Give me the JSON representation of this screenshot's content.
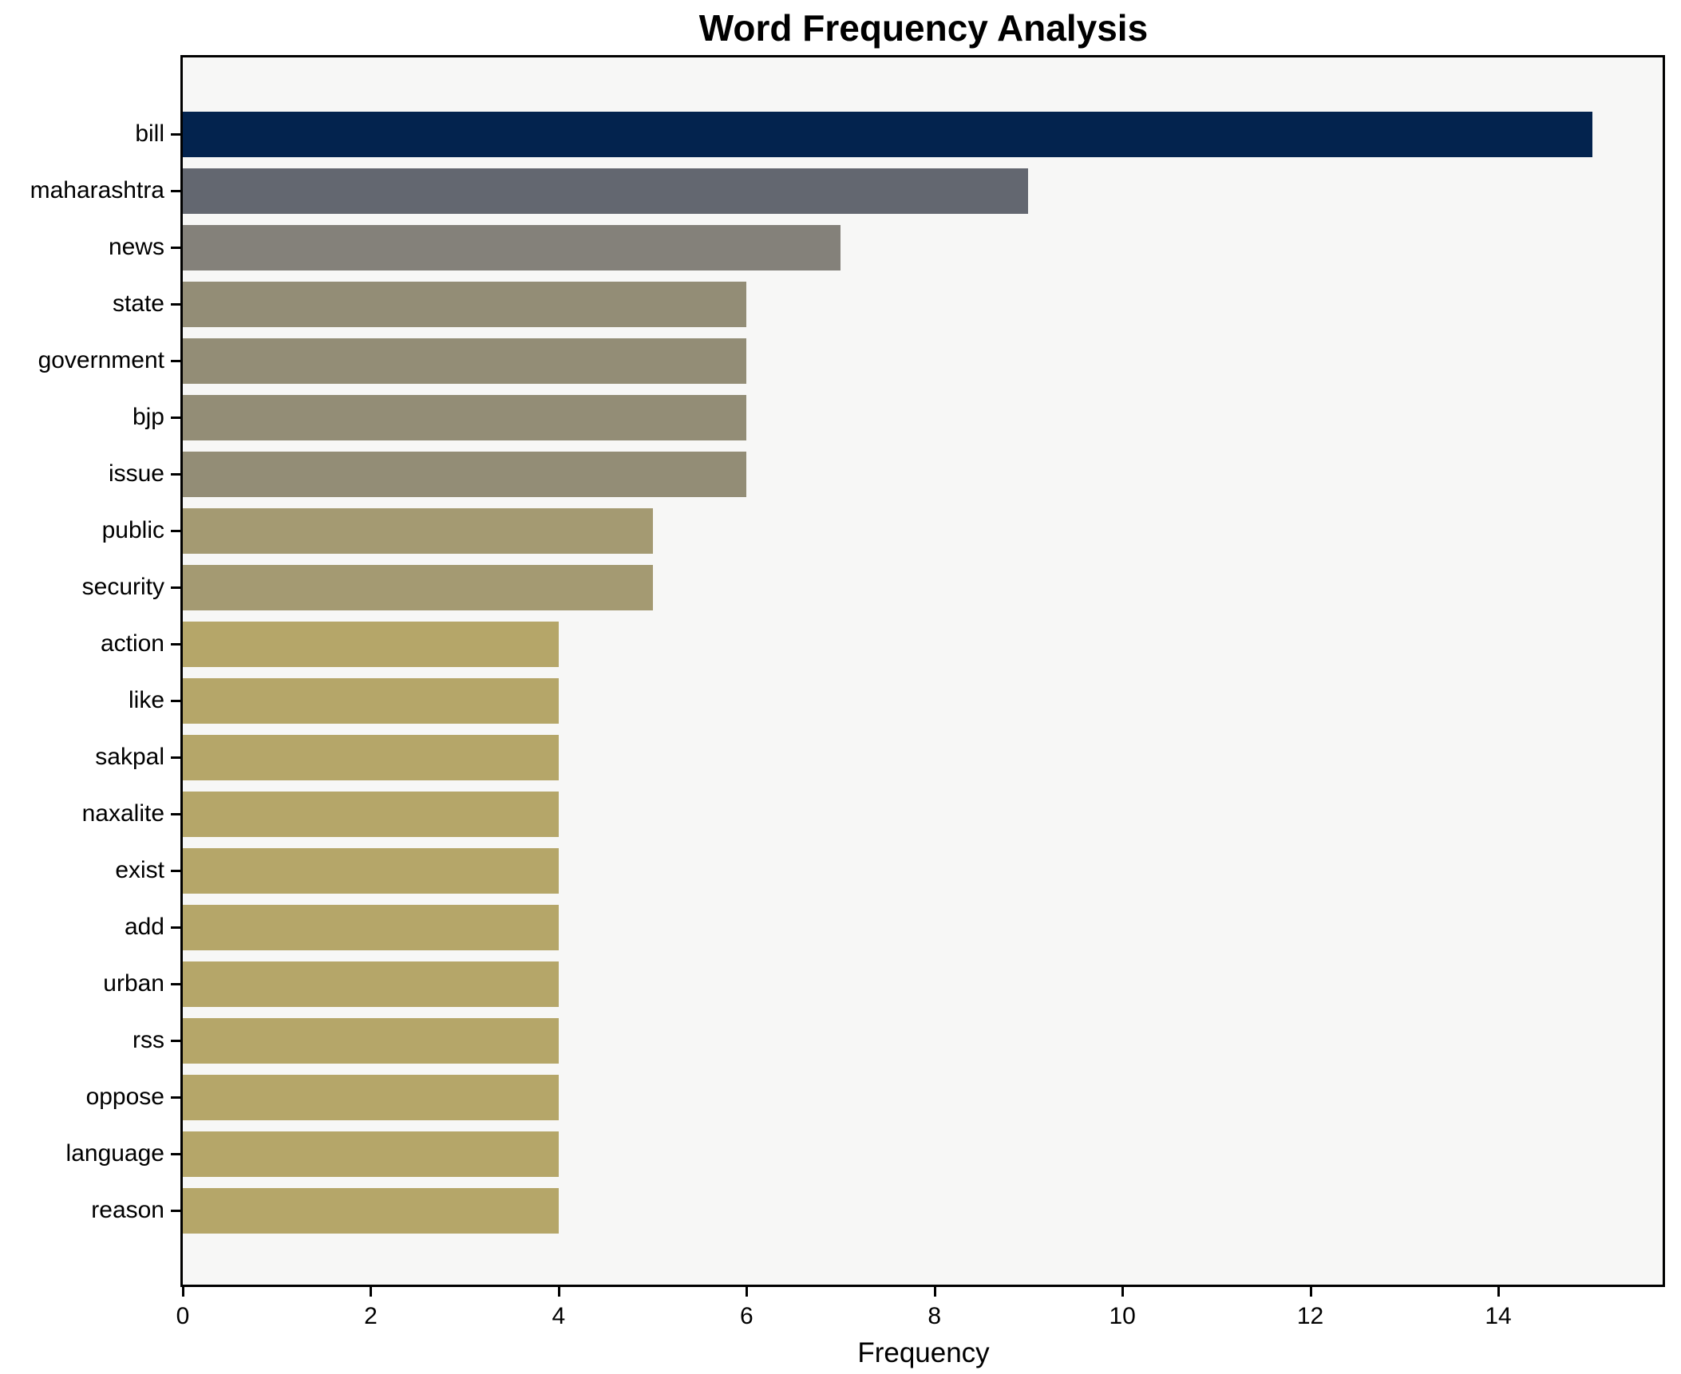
{
  "chart_data": {
    "type": "bar",
    "orientation": "horizontal",
    "title": "Word Frequency Analysis",
    "xlabel": "Frequency",
    "ylabel": "",
    "categories": [
      "bill",
      "maharashtra",
      "news",
      "state",
      "government",
      "bjp",
      "issue",
      "public",
      "security",
      "action",
      "like",
      "sakpal",
      "naxalite",
      "exist",
      "add",
      "urban",
      "rss",
      "oppose",
      "language",
      "reason"
    ],
    "values": [
      15,
      9,
      7,
      6,
      6,
      6,
      6,
      5,
      5,
      4,
      4,
      4,
      4,
      4,
      4,
      4,
      4,
      4,
      4,
      4
    ],
    "bar_colors": [
      "#03234e",
      "#636770",
      "#84817a",
      "#938d76",
      "#938d76",
      "#938d76",
      "#938d76",
      "#a49a72",
      "#a49a72",
      "#b5a669",
      "#b5a669",
      "#b5a669",
      "#b5a669",
      "#b5a669",
      "#b5a669",
      "#b5a669",
      "#b5a669",
      "#b5a669",
      "#b5a669",
      "#b5a669"
    ],
    "xlim": [
      0,
      15.75
    ],
    "xticks": [
      0,
      2,
      4,
      6,
      8,
      10,
      12,
      14
    ],
    "grid": false,
    "legend": null,
    "plot_background": "#f7f7f6",
    "figure_background": "#ffffff",
    "axis_color": "#000000",
    "text_color": "#000000"
  }
}
